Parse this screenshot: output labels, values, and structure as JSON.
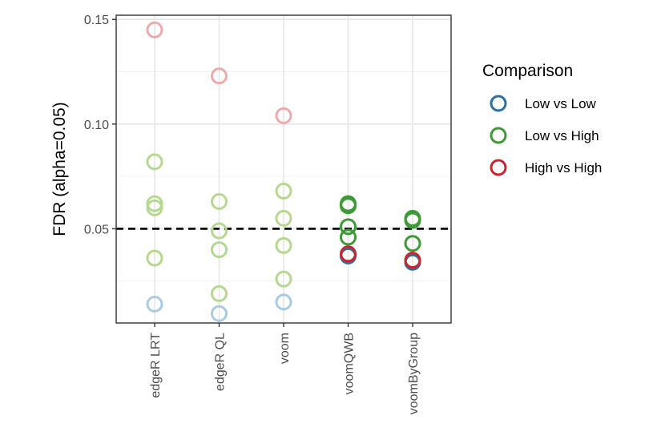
{
  "chart_data": {
    "type": "scatter",
    "title": "",
    "xlabel": "",
    "ylabel": "FDR (alpha=0.05)",
    "categories": [
      "edgeR LRT",
      "edgeR QL",
      "voom",
      "voomQWB",
      "voomByGroup"
    ],
    "ylim": [
      0.005,
      0.152
    ],
    "yticks": [
      0.05,
      0.1,
      0.15
    ],
    "ytick_labels": [
      "0.05",
      "0.10",
      "0.15"
    ],
    "reference_line": {
      "value": 0.05,
      "style": "dashed",
      "color": "#000000"
    },
    "grid": true,
    "legend": {
      "title": "Comparison",
      "position": "right",
      "entries": [
        {
          "label": "Low vs Low",
          "color": "#2b6fa3"
        },
        {
          "label": "Low vs High",
          "color": "#3e9a37"
        },
        {
          "label": "High vs High",
          "color": "#c8262c"
        }
      ]
    },
    "series": [
      {
        "name": "Low vs Low",
        "color": "#2b6fa3",
        "light_color": "#a9cbe0",
        "points": [
          {
            "x": "edgeR LRT",
            "y": 0.014
          },
          {
            "x": "edgeR QL",
            "y": 0.0095
          },
          {
            "x": "voom",
            "y": 0.015
          },
          {
            "x": "voomQWB",
            "y": 0.037
          },
          {
            "x": "voomByGroup",
            "y": 0.034
          }
        ]
      },
      {
        "name": "Low vs High",
        "color": "#3e9a37",
        "light_color": "#b4d98e",
        "points": [
          {
            "x": "edgeR LRT",
            "y": 0.082
          },
          {
            "x": "edgeR LRT",
            "y": 0.062
          },
          {
            "x": "edgeR LRT",
            "y": 0.06
          },
          {
            "x": "edgeR LRT",
            "y": 0.036
          },
          {
            "x": "edgeR QL",
            "y": 0.063
          },
          {
            "x": "edgeR QL",
            "y": 0.049
          },
          {
            "x": "edgeR QL",
            "y": 0.04
          },
          {
            "x": "edgeR QL",
            "y": 0.019
          },
          {
            "x": "voom",
            "y": 0.068
          },
          {
            "x": "voom",
            "y": 0.055
          },
          {
            "x": "voom",
            "y": 0.042
          },
          {
            "x": "voom",
            "y": 0.026
          },
          {
            "x": "voomQWB",
            "y": 0.062
          },
          {
            "x": "voomQWB",
            "y": 0.061
          },
          {
            "x": "voomQWB",
            "y": 0.051
          },
          {
            "x": "voomQWB",
            "y": 0.046
          },
          {
            "x": "voomByGroup",
            "y": 0.055
          },
          {
            "x": "voomByGroup",
            "y": 0.054
          },
          {
            "x": "voomByGroup",
            "y": 0.043
          }
        ]
      },
      {
        "name": "High vs High",
        "color": "#c8262c",
        "light_color": "#eeaaaa",
        "points": [
          {
            "x": "edgeR LRT",
            "y": 0.145
          },
          {
            "x": "edgeR QL",
            "y": 0.123
          },
          {
            "x": "voom",
            "y": 0.104
          },
          {
            "x": "voomQWB",
            "y": 0.038
          },
          {
            "x": "voomByGroup",
            "y": 0.035
          }
        ]
      }
    ],
    "faded_categories": [
      "edgeR LRT",
      "edgeR QL",
      "voom"
    ]
  }
}
